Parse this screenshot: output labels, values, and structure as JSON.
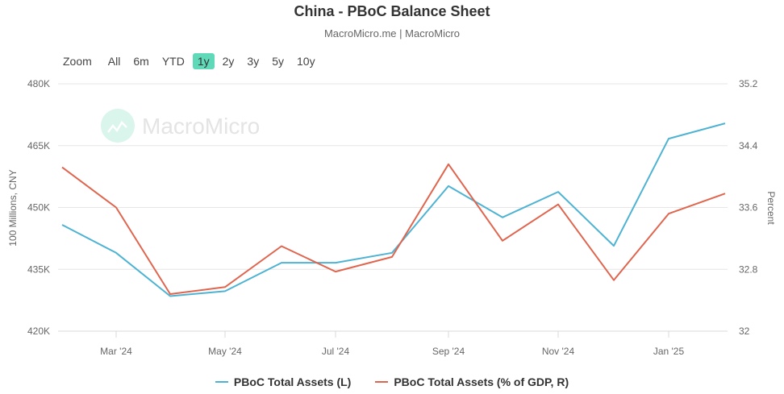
{
  "header": {
    "title": "China - PBoC Balance Sheet",
    "subtitle": "MacroMicro.me | MacroMicro"
  },
  "zoom_bar": {
    "label": "Zoom",
    "buttons": [
      {
        "label": "All",
        "active": false
      },
      {
        "label": "6m",
        "active": false
      },
      {
        "label": "YTD",
        "active": false
      },
      {
        "label": "1y",
        "active": true
      },
      {
        "label": "2y",
        "active": false
      },
      {
        "label": "3y",
        "active": false
      },
      {
        "label": "5y",
        "active": false
      },
      {
        "label": "10y",
        "active": false
      }
    ]
  },
  "watermark": {
    "text": "MacroMicro"
  },
  "colors": {
    "series_left": "#4eb3d3",
    "series_right": "#e0654e",
    "zoom_active": "#5fd9b8",
    "grid": "#e6e6e6"
  },
  "chart_data": {
    "type": "line",
    "title": "China - PBoC Balance Sheet",
    "subtitle": "MacroMicro.me | MacroMicro",
    "x": [
      "Feb '24",
      "Mar '24",
      "Apr '24",
      "May '24",
      "Jun '24",
      "Jul '24",
      "Aug '24",
      "Sep '24",
      "Oct '24",
      "Nov '24",
      "Dec '24",
      "Jan '25",
      "Feb '25"
    ],
    "x_tick_labels": [
      "Mar '24",
      "May '24",
      "Jul '24",
      "Sep '24",
      "Nov '24",
      "Jan '25"
    ],
    "series": [
      {
        "name": "PBoC Total Assets (L)",
        "axis": "left",
        "color": "#4eb3d3",
        "values": [
          445.8,
          439.0,
          428.5,
          429.7,
          436.6,
          436.6,
          439.0,
          455.2,
          447.6,
          453.8,
          440.7,
          466.7,
          470.4
        ]
      },
      {
        "name": "PBoC Total Assets (% of GDP, R)",
        "axis": "right",
        "color": "#e0654e",
        "values": [
          34.12,
          33.6,
          32.48,
          32.57,
          33.1,
          32.77,
          32.96,
          34.16,
          33.17,
          33.64,
          32.66,
          33.52,
          33.78
        ]
      }
    ],
    "y_left": {
      "label": "100 Millions, CNY",
      "ticks": [
        "420K",
        "435K",
        "450K",
        "465K",
        "480K"
      ],
      "range": [
        420,
        480
      ],
      "unit_note": "values in thousands (K)"
    },
    "y_right": {
      "label": "Percent",
      "ticks": [
        "32",
        "32.8",
        "33.6",
        "34.4",
        "35.2"
      ],
      "range": [
        32,
        35.2
      ]
    },
    "grid": true,
    "legend_position": "bottom"
  },
  "legend": [
    {
      "label": "PBoC Total Assets (L)",
      "color": "#4eb3d3"
    },
    {
      "label": "PBoC Total Assets (% of GDP, R)",
      "color": "#e0654e"
    }
  ]
}
